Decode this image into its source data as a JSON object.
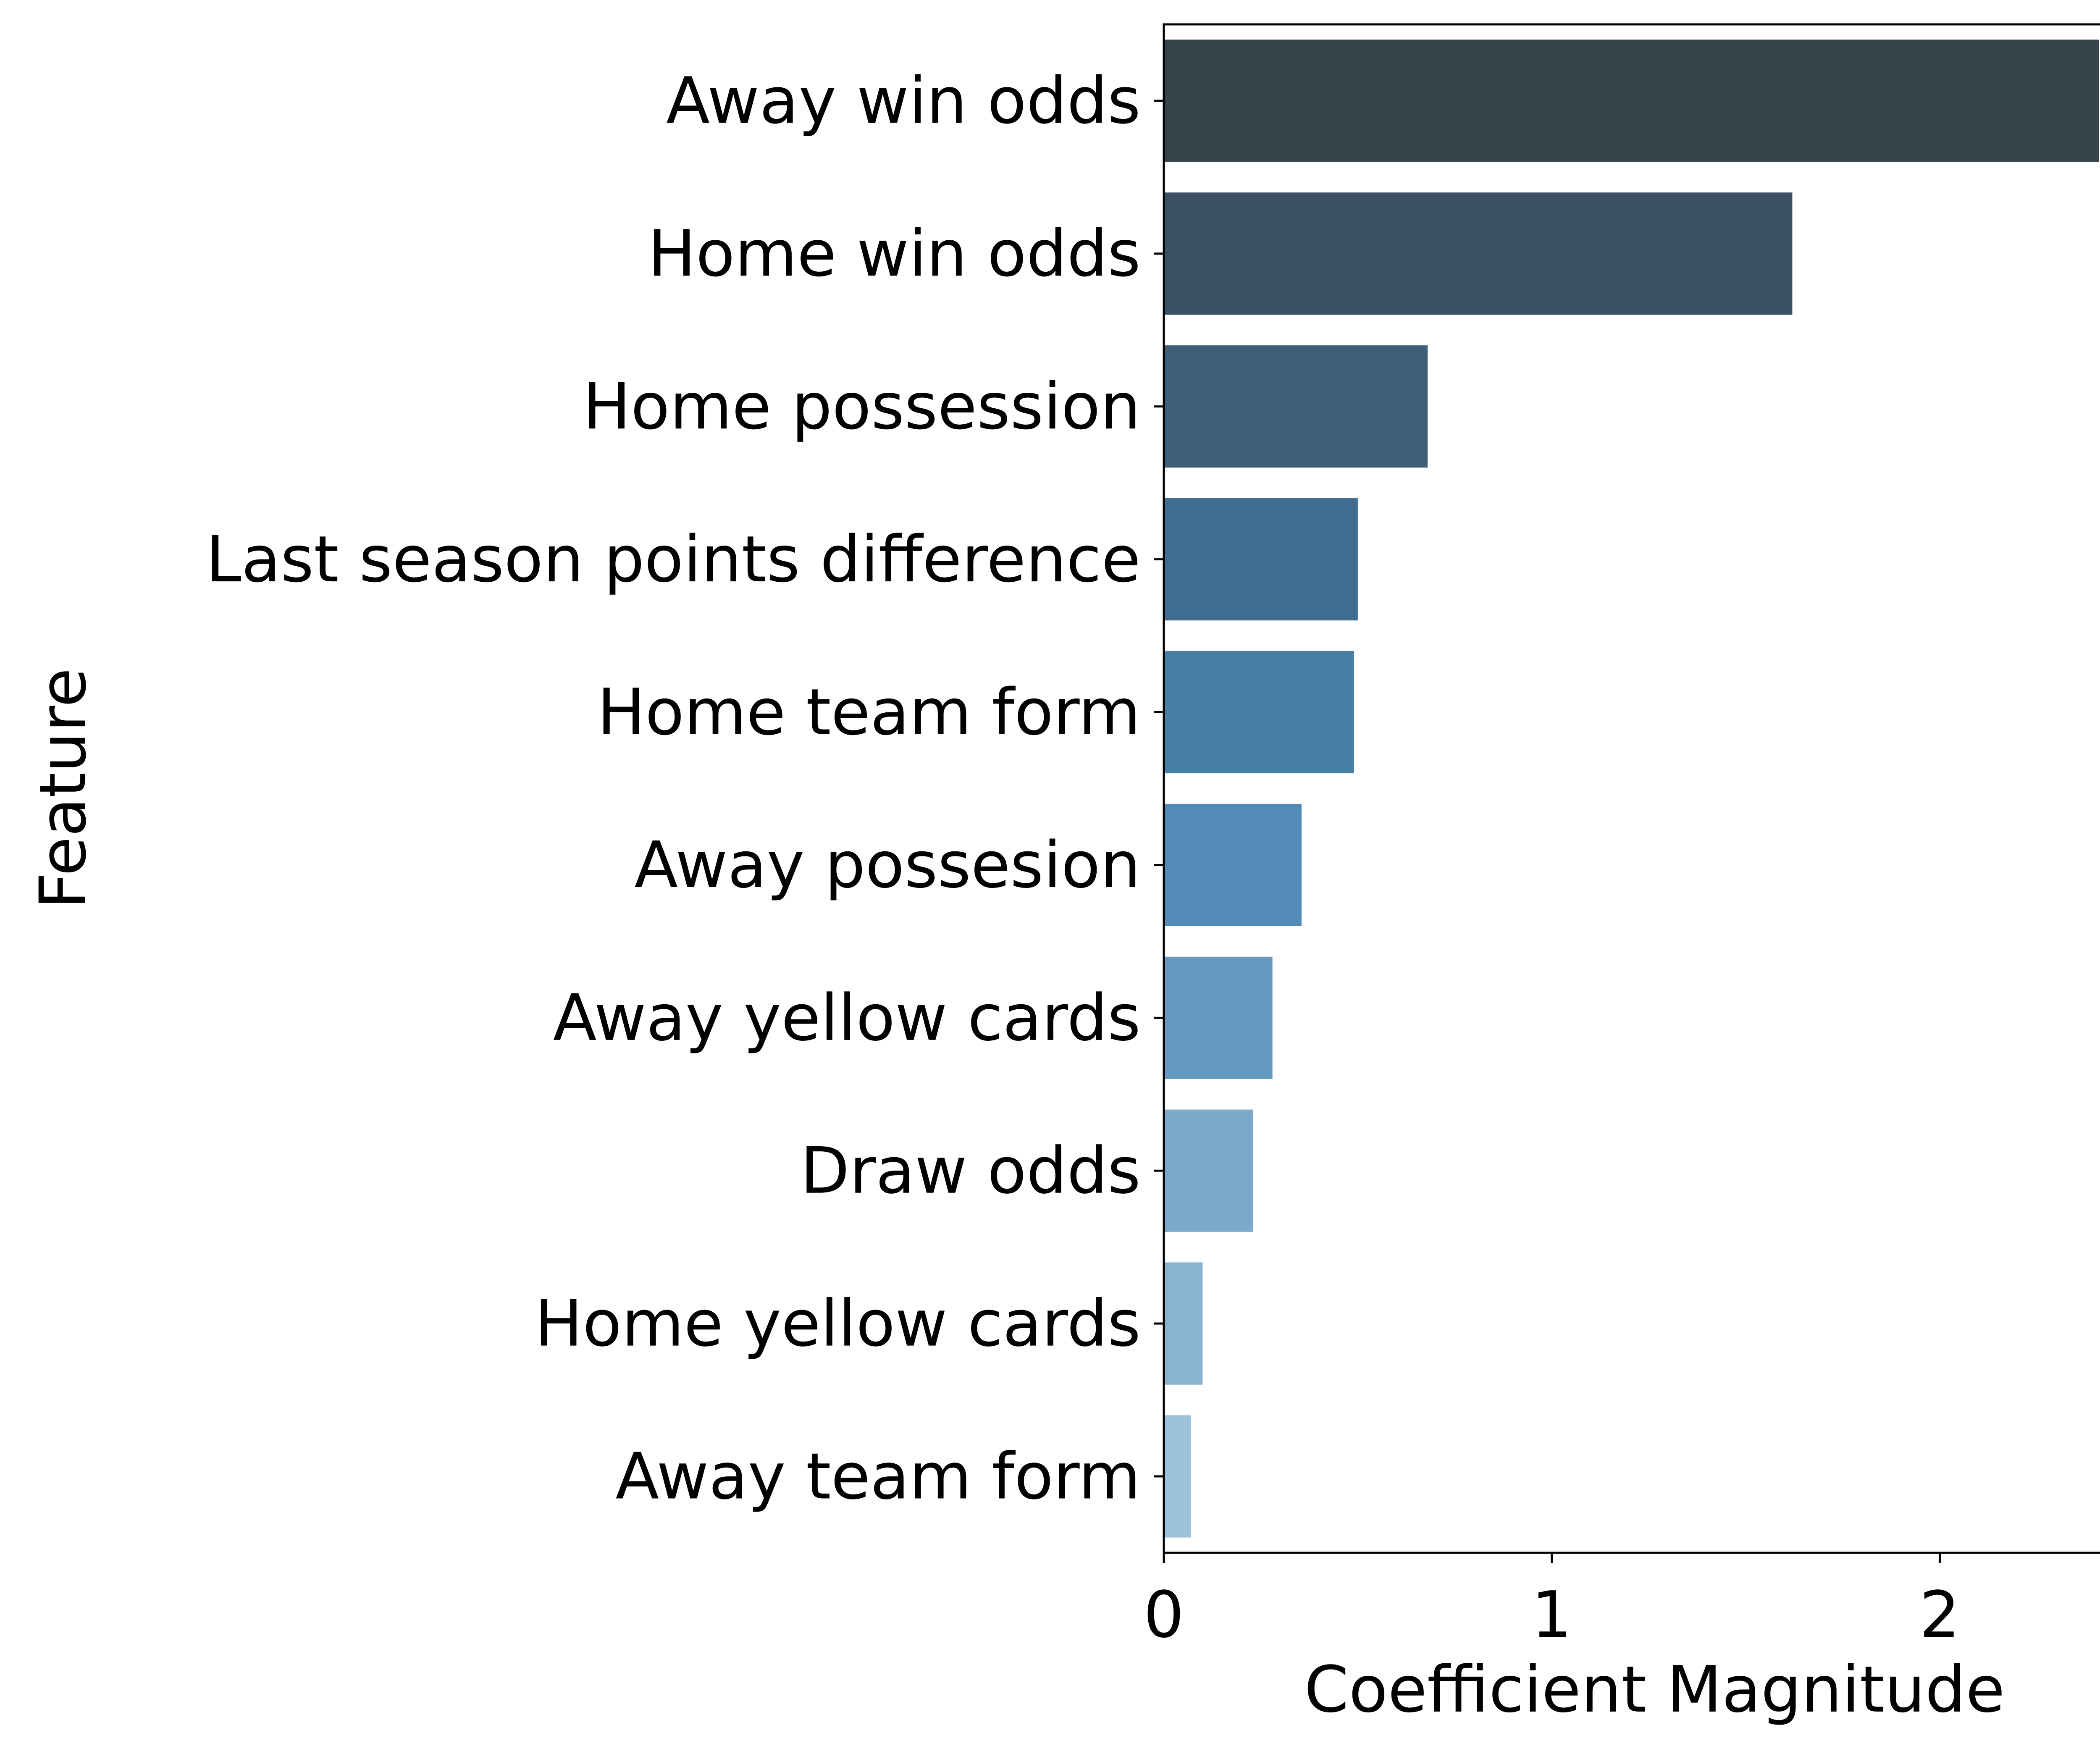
{
  "chart_data": {
    "type": "bar",
    "orientation": "horizontal",
    "categories": [
      "Away win odds",
      "Home win odds",
      "Home possession",
      "Last season points difference",
      "Home team form",
      "Away possesion",
      "Away yellow cards",
      "Draw odds",
      "Home yellow cards",
      "Away team form"
    ],
    "values": [
      2.41,
      1.62,
      0.68,
      0.5,
      0.49,
      0.355,
      0.28,
      0.23,
      0.1,
      0.07
    ],
    "colors": [
      "#37444b",
      "#3b5163",
      "#3e5f78",
      "#406d8f",
      "#477ea6",
      "#528ab8",
      "#6699bf",
      "#7aa9c9",
      "#8ab3d0",
      "#9dc1db"
    ],
    "title": "",
    "xlabel": "Coefficient Magnitude",
    "ylabel": "Feature",
    "xlim": [
      0,
      2.53
    ],
    "xticks": [
      0,
      1,
      2
    ],
    "xtick_labels": [
      "0",
      "1",
      "2"
    ],
    "grid": false,
    "legend": "none"
  }
}
